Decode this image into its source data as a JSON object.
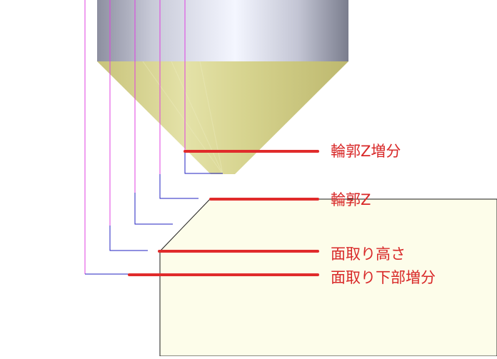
{
  "labels": {
    "contour_z_increment": "輪郭Z増分",
    "contour_z": "輪郭Z",
    "chamfer_height": "面取り高さ",
    "chamfer_bottom_increment": "面取り下部増分"
  },
  "colors": {
    "callout_line": "#e02b2b",
    "label_text": "#d82828",
    "tool_path_magenta": "#e040e0",
    "tool_path_blue": "#2020c0",
    "workpiece_fill": "#fdfdea",
    "workpiece_edge": "#1a1a1a",
    "cone_fill": "#d7d48e",
    "shank_light": "#f2f4ff",
    "shank_dark": "#7d8090"
  },
  "icons": {
    "tool": "chamfer-tool-icon",
    "workpiece": "workpiece-icon"
  }
}
